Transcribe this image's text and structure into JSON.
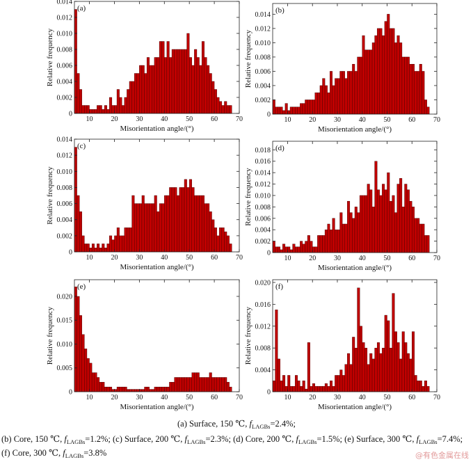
{
  "chart_data": [
    {
      "id": "a",
      "type": "bar",
      "panel_label": "(a)",
      "xlabel": "Misorientation angle/(°)",
      "ylabel": "Relative frequency",
      "xlim": [
        4,
        70
      ],
      "ylim": [
        0,
        0.014
      ],
      "xticks": [
        10,
        20,
        30,
        40,
        50,
        60,
        70
      ],
      "yticks": [
        0,
        0.002,
        0.004,
        0.006,
        0.008,
        0.01,
        0.012,
        0.014
      ],
      "ytick_labels": [
        "0",
        "0.002",
        "0.004",
        "0.006",
        "0.008",
        "0.010",
        "0.012",
        "0.014"
      ],
      "x_start": 4,
      "bin_width": 1,
      "values": [
        0.013,
        0.005,
        0.003,
        0.001,
        0.001,
        0.001,
        0.0005,
        0.0005,
        0.0005,
        0.001,
        0.001,
        0.0005,
        0.001,
        0.0005,
        0.002,
        0.001,
        0.001,
        0.003,
        0.002,
        0.001,
        0.002,
        0.003,
        0.004,
        0.004,
        0.005,
        0.005,
        0.006,
        0.006,
        0.005,
        0.007,
        0.006,
        0.006,
        0.007,
        0.007,
        0.009,
        0.009,
        0.007,
        0.009,
        0.007,
        0.008,
        0.008,
        0.008,
        0.008,
        0.008,
        0.008,
        0.01,
        0.007,
        0.006,
        0.008,
        0.007,
        0.006,
        0.009,
        0.007,
        0.006,
        0.005,
        0.004,
        0.003,
        0.002,
        0.0015,
        0.001,
        0.0015,
        0.001,
        0.001
      ]
    },
    {
      "id": "b",
      "type": "bar",
      "panel_label": "(b)",
      "xlabel": "Misorientation angle/(°)",
      "ylabel": "Relative frequency",
      "xlim": [
        4,
        70
      ],
      "ylim": [
        0,
        0.0155
      ],
      "xticks": [
        10,
        20,
        30,
        40,
        50,
        60,
        70
      ],
      "yticks": [
        0,
        0.002,
        0.004,
        0.006,
        0.008,
        0.01,
        0.012,
        0.014
      ],
      "ytick_labels": [
        "0",
        "0.002",
        "0.004",
        "0.006",
        "0.008",
        "0.010",
        "0.012",
        "0.014"
      ],
      "x_start": 4,
      "bin_width": 1,
      "values": [
        0.002,
        0.001,
        0.001,
        0.001,
        0.0005,
        0.0015,
        0.0005,
        0.001,
        0.001,
        0.001,
        0.001,
        0.0015,
        0.0015,
        0.002,
        0.002,
        0.002,
        0.002,
        0.003,
        0.003,
        0.004,
        0.005,
        0.004,
        0.003,
        0.006,
        0.004,
        0.005,
        0.005,
        0.006,
        0.006,
        0.005,
        0.006,
        0.006,
        0.007,
        0.006,
        0.008,
        0.008,
        0.011,
        0.009,
        0.009,
        0.009,
        0.01,
        0.011,
        0.012,
        0.012,
        0.011,
        0.013,
        0.014,
        0.012,
        0.012,
        0.01,
        0.011,
        0.01,
        0.008,
        0.008,
        0.008,
        0.007,
        0.007,
        0.006,
        0.006,
        0.007,
        0.006,
        0.002,
        0.001
      ]
    },
    {
      "id": "c",
      "type": "bar",
      "panel_label": "(c)",
      "xlabel": "Misorientation angle/(°)",
      "ylabel": "Relative frequency",
      "xlim": [
        4,
        70
      ],
      "ylim": [
        0,
        0.014
      ],
      "xticks": [
        10,
        20,
        30,
        40,
        50,
        60,
        70
      ],
      "yticks": [
        0,
        0.002,
        0.004,
        0.006,
        0.008,
        0.01,
        0.012,
        0.014
      ],
      "ytick_labels": [
        "0",
        "0.002",
        "0.004",
        "0.006",
        "0.008",
        "0.010",
        "0.012",
        "0.014"
      ],
      "x_start": 4,
      "bin_width": 1,
      "values": [
        0.013,
        0.007,
        0.005,
        0.002,
        0.001,
        0.001,
        0.0005,
        0.001,
        0.0005,
        0.001,
        0.0005,
        0.001,
        0.0005,
        0.001,
        0.002,
        0.0015,
        0.002,
        0.003,
        0.002,
        0.002,
        0.003,
        0.003,
        0.003,
        0.007,
        0.006,
        0.006,
        0.006,
        0.007,
        0.006,
        0.006,
        0.006,
        0.006,
        0.007,
        0.005,
        0.006,
        0.006,
        0.007,
        0.007,
        0.008,
        0.008,
        0.008,
        0.007,
        0.008,
        0.008,
        0.009,
        0.008,
        0.009,
        0.008,
        0.007,
        0.007,
        0.007,
        0.007,
        0.006,
        0.006,
        0.005,
        0.004,
        0.003,
        0.002,
        0.003,
        0.003,
        0.0025,
        0.002,
        0.001
      ]
    },
    {
      "id": "d",
      "type": "bar",
      "panel_label": "(d)",
      "xlabel": "Misorientation angle/(°)",
      "ylabel": "Relative frequency",
      "xlim": [
        4,
        70
      ],
      "ylim": [
        0,
        0.0195
      ],
      "xticks": [
        10,
        20,
        30,
        40,
        50,
        60,
        70
      ],
      "yticks": [
        0,
        0.002,
        0.004,
        0.006,
        0.008,
        0.01,
        0.012,
        0.014,
        0.016,
        0.018
      ],
      "ytick_labels": [
        "0",
        "0.002",
        "0.004",
        "0.006",
        "0.008",
        "0.010",
        "0.012",
        "0.014",
        "0.016",
        "0.018"
      ],
      "x_start": 4,
      "bin_width": 1,
      "values": [
        0.002,
        0.001,
        0.001,
        0.0005,
        0.0015,
        0.001,
        0.001,
        0.0005,
        0.0015,
        0.001,
        0.001,
        0.002,
        0.0015,
        0.002,
        0.003,
        0.002,
        0.001,
        0.001,
        0.003,
        0.003,
        0.003,
        0.004,
        0.005,
        0.004,
        0.006,
        0.004,
        0.004,
        0.007,
        0.005,
        0.005,
        0.009,
        0.007,
        0.006,
        0.008,
        0.007,
        0.01,
        0.01,
        0.01,
        0.012,
        0.011,
        0.008,
        0.016,
        0.011,
        0.01,
        0.012,
        0.011,
        0.014,
        0.009,
        0.01,
        0.007,
        0.012,
        0.013,
        0.008,
        0.012,
        0.011,
        0.009,
        0.008,
        0.006,
        0.006,
        0.005,
        0.005,
        0.003,
        0.003
      ]
    },
    {
      "id": "e",
      "type": "bar",
      "panel_label": "(e)",
      "xlabel": "Misorientation angle/(°)",
      "ylabel": "Relative frequency",
      "xlim": [
        4,
        70
      ],
      "ylim": [
        0,
        0.0235
      ],
      "xticks": [
        10,
        20,
        30,
        40,
        50,
        60,
        70
      ],
      "yticks": [
        0,
        0.005,
        0.01,
        0.015,
        0.02
      ],
      "ytick_labels": [
        "0",
        "0.005",
        "0.010",
        "0.015",
        "0.020"
      ],
      "x_start": 4,
      "bin_width": 1,
      "values": [
        0.022,
        0.02,
        0.016,
        0.012,
        0.009,
        0.007,
        0.006,
        0.004,
        0.004,
        0.003,
        0.002,
        0.002,
        0.001,
        0.001,
        0.001,
        0.0005,
        0.0005,
        0.001,
        0.001,
        0.001,
        0.001,
        0.0005,
        0.0005,
        0.0005,
        0.0005,
        0.0005,
        0.0005,
        0.0005,
        0.001,
        0.001,
        0.0005,
        0.0005,
        0.001,
        0.001,
        0.001,
        0.001,
        0.001,
        0.001,
        0.002,
        0.002,
        0.003,
        0.003,
        0.003,
        0.003,
        0.003,
        0.003,
        0.003,
        0.004,
        0.004,
        0.004,
        0.003,
        0.003,
        0.003,
        0.003,
        0.004,
        0.003,
        0.003,
        0.003,
        0.003,
        0.003,
        0.003,
        0.002,
        0.001
      ]
    },
    {
      "id": "f",
      "type": "bar",
      "panel_label": "(f)",
      "xlabel": "Misorientation angle/(°)",
      "ylabel": "Relative frequency",
      "xlim": [
        4,
        70
      ],
      "ylim": [
        0,
        0.0205
      ],
      "xticks": [
        10,
        20,
        30,
        40,
        50,
        60,
        70
      ],
      "yticks": [
        0,
        0.004,
        0.008,
        0.012,
        0.016,
        0.02
      ],
      "ytick_labels": [
        "0",
        "0.004",
        "0.008",
        "0.012",
        "0.016",
        "0.020"
      ],
      "x_start": 4,
      "bin_width": 1,
      "values": [
        0.002,
        0.015,
        0.006,
        0.002,
        0.003,
        0.001,
        0.003,
        0.001,
        0.001,
        0.003,
        0.002,
        0.001,
        0.002,
        0.0005,
        0.009,
        0.001,
        0.0015,
        0.001,
        0.001,
        0.001,
        0.001,
        0.0015,
        0.001,
        0.002,
        0.001,
        0.003,
        0.003,
        0.004,
        0.003,
        0.005,
        0.007,
        0.005,
        0.01,
        0.008,
        0.019,
        0.012,
        0.009,
        0.008,
        0.005,
        0.007,
        0.006,
        0.008,
        0.009,
        0.007,
        0.008,
        0.014,
        0.013,
        0.008,
        0.018,
        0.011,
        0.009,
        0.006,
        0.011,
        0.009,
        0.007,
        0.006,
        0.011,
        0.003,
        0.002,
        0.002,
        0.001,
        0.002,
        0.001
      ]
    }
  ],
  "captions": {
    "a": {
      "pre": "(a) Surface, 150 ℃, ",
      "f": "f",
      "sub": "LAGBs",
      "post": "=2.4%;"
    },
    "b": [
      {
        "pre": "(b) Core, 150 ℃, ",
        "f": "f",
        "sub": "LAGBs",
        "post": "=1.2%;"
      },
      {
        "pre": " (c) Surface, 200 ℃, ",
        "f": "f",
        "sub": "LAGBs",
        "post": "=2.3%;"
      },
      {
        "pre": " (d) Core, 200 ℃, ",
        "f": "f",
        "sub": "LAGBs",
        "post": "=1.5%;"
      },
      {
        "pre": " (e) Surface, 300 ℃, ",
        "f": "f",
        "sub": "LAGBs",
        "post": "=7.4%;"
      }
    ],
    "f": {
      "pre": "(f) Core, 300 ℃, ",
      "f": "f",
      "sub": "LAGBs",
      "post": "=3.8%"
    }
  },
  "watermark": "@有色金属在线",
  "colors": {
    "bar_fill": "#c00000",
    "bar_stroke": "#3a0000",
    "axis": "#222222"
  }
}
